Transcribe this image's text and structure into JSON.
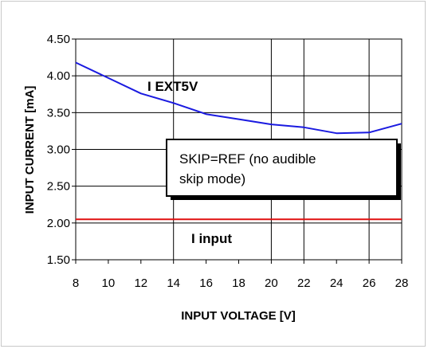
{
  "chart_data": {
    "type": "line",
    "xlabel": "INPUT VOLTAGE [V]",
    "ylabel": "INPUT CURRENT [mA]",
    "xlim": [
      8,
      28
    ],
    "ylim": [
      1.5,
      4.5
    ],
    "x_ticks": [
      "8",
      "10",
      "12",
      "14",
      "16",
      "18",
      "20",
      "22",
      "24",
      "26",
      "28"
    ],
    "y_ticks": [
      "1.50",
      "2.00",
      "2.50",
      "3.00",
      "3.50",
      "4.00",
      "4.50"
    ],
    "grid": "vertical at 14, 20, 22, 26",
    "series": [
      {
        "name": "I EXT5V",
        "color": "#1a1ae0",
        "x": [
          8,
          10,
          12,
          14,
          16,
          18,
          20,
          22,
          24,
          26,
          28
        ],
        "y": [
          4.18,
          3.97,
          3.76,
          3.63,
          3.48,
          3.41,
          3.34,
          3.3,
          3.22,
          3.23,
          3.35
        ]
      },
      {
        "name": "I input",
        "color": "#e01010",
        "x": [
          8,
          28
        ],
        "y": [
          2.05,
          2.05
        ]
      }
    ],
    "annotation_box": {
      "line1": "SKIP=REF (no audible",
      "line2": "skip mode)"
    }
  }
}
